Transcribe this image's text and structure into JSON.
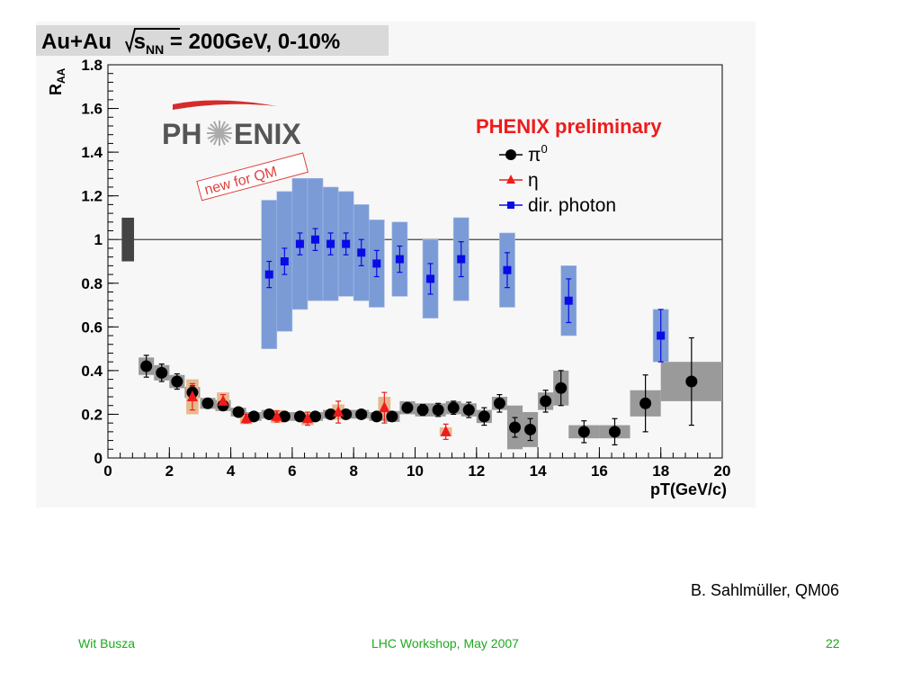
{
  "chart_data": {
    "type": "scatter",
    "title": "Au+Au √s_NN = 200GeV, 0-10%",
    "title_parts": {
      "pre": "Au+Au ",
      "s": "s",
      "sub": "NN",
      "post": " = 200GeV, 0-10%"
    },
    "ylabel": "R",
    "ylabel_sub": "AA",
    "xlabel": "pT(GeV/c)",
    "xlim": [
      0,
      20
    ],
    "ylim": [
      0,
      1.8
    ],
    "xticks": [
      "0",
      "2",
      "4",
      "6",
      "8",
      "10",
      "12",
      "14",
      "16",
      "18",
      "20"
    ],
    "yticks": [
      "0",
      "0.2",
      "0.4",
      "0.6",
      "0.8",
      "1",
      "1.2",
      "1.4",
      "1.6",
      "1.8"
    ],
    "xtick_values": [
      0,
      2,
      4,
      6,
      8,
      10,
      12,
      14,
      16,
      18,
      20
    ],
    "ytick_values": [
      0,
      0.2,
      0.4,
      0.6,
      0.8,
      1,
      1.2,
      1.4,
      1.6,
      1.8
    ],
    "reference_line_y": 1,
    "normalization_box": {
      "x_min": 0.45,
      "x_max": 0.85,
      "y_min": 0.9,
      "y_max": 1.1,
      "color": "#444444"
    },
    "legend_position": "top-right",
    "annotation_preliminary": "PHENIX preliminary",
    "annotation_new": "new for QM",
    "logo_text": "PHENIX",
    "series": [
      {
        "name": "π⁰",
        "name_main": "π",
        "name_sup": "0",
        "marker": "circle",
        "color": "#000000",
        "sys_color": "#9a9a9a",
        "points": [
          {
            "x": 1.25,
            "y": 0.42,
            "err": 0.05,
            "sys_w": 0.5,
            "sys": 0.04
          },
          {
            "x": 1.75,
            "y": 0.39,
            "err": 0.04,
            "sys_w": 0.5,
            "sys": 0.035
          },
          {
            "x": 2.25,
            "y": 0.35,
            "err": 0.035,
            "sys_w": 0.5,
            "sys": 0.03
          },
          {
            "x": 2.75,
            "y": 0.3,
            "err": 0.03,
            "sys_w": 0.5,
            "sys": 0.025
          },
          {
            "x": 3.25,
            "y": 0.25,
            "err": 0.02,
            "sys_w": 0.5,
            "sys": 0.025
          },
          {
            "x": 3.75,
            "y": 0.24,
            "err": 0.02,
            "sys_w": 0.5,
            "sys": 0.025
          },
          {
            "x": 4.25,
            "y": 0.21,
            "err": 0.015,
            "sys_w": 0.5,
            "sys": 0.02
          },
          {
            "x": 4.75,
            "y": 0.19,
            "err": 0.015,
            "sys_w": 0.5,
            "sys": 0.02
          },
          {
            "x": 5.25,
            "y": 0.2,
            "err": 0.015,
            "sys_w": 0.5,
            "sys": 0.02
          },
          {
            "x": 5.75,
            "y": 0.19,
            "err": 0.015,
            "sys_w": 0.5,
            "sys": 0.02
          },
          {
            "x": 6.25,
            "y": 0.19,
            "err": 0.015,
            "sys_w": 0.5,
            "sys": 0.02
          },
          {
            "x": 6.75,
            "y": 0.19,
            "err": 0.015,
            "sys_w": 0.5,
            "sys": 0.02
          },
          {
            "x": 7.25,
            "y": 0.2,
            "err": 0.015,
            "sys_w": 0.5,
            "sys": 0.02
          },
          {
            "x": 7.75,
            "y": 0.2,
            "err": 0.015,
            "sys_w": 0.5,
            "sys": 0.02
          },
          {
            "x": 8.25,
            "y": 0.2,
            "err": 0.015,
            "sys_w": 0.5,
            "sys": 0.02
          },
          {
            "x": 8.75,
            "y": 0.19,
            "err": 0.015,
            "sys_w": 0.5,
            "sys": 0.02
          },
          {
            "x": 9.25,
            "y": 0.19,
            "err": 0.02,
            "sys_w": 0.5,
            "sys": 0.025
          },
          {
            "x": 9.75,
            "y": 0.23,
            "err": 0.02,
            "sys_w": 0.5,
            "sys": 0.03
          },
          {
            "x": 10.25,
            "y": 0.22,
            "err": 0.025,
            "sys_w": 0.5,
            "sys": 0.03
          },
          {
            "x": 10.75,
            "y": 0.22,
            "err": 0.03,
            "sys_w": 0.5,
            "sys": 0.03
          },
          {
            "x": 11.25,
            "y": 0.23,
            "err": 0.03,
            "sys_w": 0.5,
            "sys": 0.03
          },
          {
            "x": 11.75,
            "y": 0.22,
            "err": 0.035,
            "sys_w": 0.5,
            "sys": 0.03
          },
          {
            "x": 12.25,
            "y": 0.19,
            "err": 0.04,
            "sys_w": 0.5,
            "sys": 0.03
          },
          {
            "x": 12.75,
            "y": 0.25,
            "err": 0.04,
            "sys_w": 0.5,
            "sys": 0.03
          },
          {
            "x": 13.25,
            "y": 0.14,
            "err": 0.045,
            "sys_w": 0.5,
            "sys": 0.1
          },
          {
            "x": 13.75,
            "y": 0.13,
            "err": 0.05,
            "sys_w": 0.5,
            "sys": 0.08
          },
          {
            "x": 14.25,
            "y": 0.26,
            "err": 0.05,
            "sys_w": 0.5,
            "sys": 0.04
          },
          {
            "x": 14.75,
            "y": 0.32,
            "err": 0.08,
            "sys_w": 0.5,
            "sys": 0.08
          },
          {
            "x": 15.5,
            "y": 0.12,
            "err": 0.05,
            "sys_w": 1.0,
            "sys": 0.03
          },
          {
            "x": 16.5,
            "y": 0.12,
            "err": 0.06,
            "sys_w": 1.0,
            "sys": 0.03
          },
          {
            "x": 17.5,
            "y": 0.25,
            "err": 0.13,
            "sys_w": 1.0,
            "sys": 0.06
          },
          {
            "x": 19.0,
            "y": 0.35,
            "err": 0.2,
            "sys_w": 2.0,
            "sys": 0.09
          }
        ]
      },
      {
        "name": "η",
        "name_main": "η",
        "name_sup": "",
        "marker": "triangle",
        "color": "#ee1c1c",
        "sys_color": "#e8b98f",
        "points": [
          {
            "x": 2.75,
            "y": 0.28,
            "err": 0.06,
            "sys_w": 0.4,
            "sys": 0.08
          },
          {
            "x": 3.75,
            "y": 0.26,
            "err": 0.03,
            "sys_w": 0.4,
            "sys": 0.04
          },
          {
            "x": 4.5,
            "y": 0.18,
            "err": 0.02,
            "sys_w": 0.4,
            "sys": 0.025
          },
          {
            "x": 5.5,
            "y": 0.19,
            "err": 0.025,
            "sys_w": 0.4,
            "sys": 0.03
          },
          {
            "x": 6.5,
            "y": 0.18,
            "err": 0.03,
            "sys_w": 0.4,
            "sys": 0.03
          },
          {
            "x": 7.5,
            "y": 0.21,
            "err": 0.05,
            "sys_w": 0.4,
            "sys": 0.035
          },
          {
            "x": 9.0,
            "y": 0.23,
            "err": 0.07,
            "sys_w": 0.4,
            "sys": 0.05
          },
          {
            "x": 11.0,
            "y": 0.12,
            "err": 0.035,
            "sys_w": 0.4,
            "sys": 0.02
          }
        ]
      },
      {
        "name": "dir. photon",
        "name_main": "dir. photon",
        "name_sup": "",
        "marker": "square",
        "color": "#0a0ae6",
        "sys_color": "#7a9bd6",
        "points": [
          {
            "x": 5.25,
            "y": 0.84,
            "err": 0.06,
            "sys_w": 0.5,
            "sys": 0.34
          },
          {
            "x": 5.75,
            "y": 0.9,
            "err": 0.06,
            "sys_w": 0.5,
            "sys": 0.32
          },
          {
            "x": 6.25,
            "y": 0.98,
            "err": 0.05,
            "sys_w": 0.5,
            "sys": 0.3
          },
          {
            "x": 6.75,
            "y": 1.0,
            "err": 0.05,
            "sys_w": 0.5,
            "sys": 0.28
          },
          {
            "x": 7.25,
            "y": 0.98,
            "err": 0.05,
            "sys_w": 0.5,
            "sys": 0.26
          },
          {
            "x": 7.75,
            "y": 0.98,
            "err": 0.05,
            "sys_w": 0.5,
            "sys": 0.24
          },
          {
            "x": 8.25,
            "y": 0.94,
            "err": 0.06,
            "sys_w": 0.5,
            "sys": 0.22
          },
          {
            "x": 8.75,
            "y": 0.89,
            "err": 0.06,
            "sys_w": 0.5,
            "sys": 0.2
          },
          {
            "x": 9.5,
            "y": 0.91,
            "err": 0.06,
            "sys_w": 0.5,
            "sys": 0.17
          },
          {
            "x": 10.5,
            "y": 0.82,
            "err": 0.07,
            "sys_w": 0.5,
            "sys": 0.18
          },
          {
            "x": 11.5,
            "y": 0.91,
            "err": 0.08,
            "sys_w": 0.5,
            "sys": 0.19
          },
          {
            "x": 13.0,
            "y": 0.86,
            "err": 0.08,
            "sys_w": 0.5,
            "sys": 0.17
          },
          {
            "x": 15.0,
            "y": 0.72,
            "err": 0.1,
            "sys_w": 0.5,
            "sys": 0.16
          },
          {
            "x": 18.0,
            "y": 0.56,
            "err": 0.12,
            "sys_w": 0.5,
            "sys": 0.12
          }
        ]
      }
    ]
  },
  "credit": "B. Sahlmüller, QM06",
  "footer": {
    "author": "Wit Busza",
    "event": "LHC Workshop, May 2007",
    "page": "22"
  },
  "colors": {
    "footer_text": "#1fa81f",
    "preliminary_text": "#ee1c1c",
    "logo_arc": "#d62b2b",
    "logo_text": "#555555",
    "title_box": "#d9d9d9"
  }
}
